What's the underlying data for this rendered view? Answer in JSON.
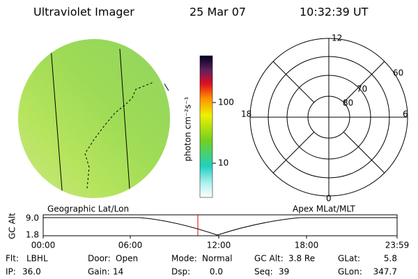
{
  "header": {
    "title": "Ultraviolet Imager",
    "date": "25 Mar 07",
    "time": "10:32:39 UT"
  },
  "colorbar": {
    "label": "photon cm⁻²s⁻¹",
    "ticks": [
      "100",
      "10"
    ]
  },
  "polar": {
    "hours": [
      "12",
      "18",
      "6",
      "0"
    ],
    "lats": [
      "60",
      "70",
      "80"
    ]
  },
  "track": {
    "left_title": "Geographic Lat/Lon",
    "right_title": "Apex MLat/MLT",
    "y_label": "GC Alt",
    "y_ticks": [
      "9.0",
      "1.8"
    ],
    "x_ticks": [
      "00:00",
      "06:00",
      "12:00",
      "18:00",
      "23:59"
    ]
  },
  "info": [
    [
      {
        "label": "Flt:",
        "value": "LBHL"
      },
      {
        "label": "Door:",
        "value": "Open"
      },
      {
        "label": "Mode:",
        "value": "Normal"
      },
      {
        "label": "GC Alt:",
        "value": "3.8 Re"
      },
      {
        "label": "GLat:",
        "value": "5.8"
      }
    ],
    [
      {
        "label": "IP:",
        "value": "36.0"
      },
      {
        "label": "Gain:",
        "value": "14"
      },
      {
        "label": "Dsp:",
        "value": "0.0"
      },
      {
        "label": "Seq:",
        "value": "39"
      },
      {
        "label": "GLon:",
        "value": "347.7"
      }
    ]
  ]
}
